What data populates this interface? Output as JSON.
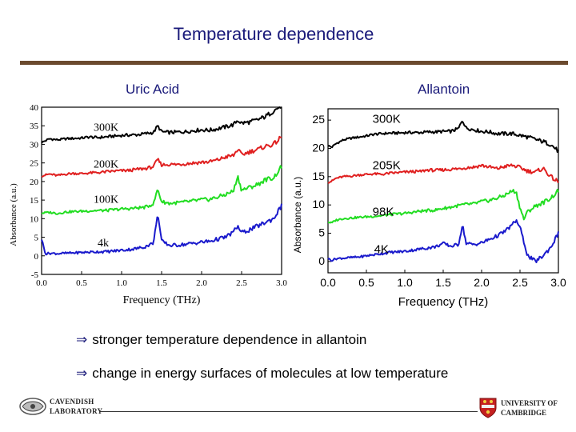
{
  "title": "Temperature dependence",
  "bullets": [
    "stronger temperature dependence in allantoin",
    "change in energy surfaces of molecules at low temperature"
  ],
  "logos": {
    "left": [
      "CAVENDISH",
      "LABORATORY"
    ],
    "right": [
      "UNIVERSITY OF",
      "CAMBRIDGE"
    ]
  },
  "colors": {
    "title": "#1a1a7a",
    "rule": "#6b4a2e",
    "s300": "#000000",
    "s200": "#e02020",
    "s100": "#22dd22",
    "s4": "#1a1acc"
  },
  "chart_data": [
    {
      "type": "line",
      "title": "Uric Acid",
      "xlabel": "Frequency (THz)",
      "ylabel": "Absorbance (a.u.)",
      "xlim": [
        0.0,
        3.0
      ],
      "ylim": [
        -5,
        40
      ],
      "xticks": [
        "0.0",
        "0.5",
        "1.0",
        "1.5",
        "2.0",
        "2.5",
        "3.0"
      ],
      "yticks": [
        "-5",
        "0",
        "5",
        "10",
        "15",
        "20",
        "25",
        "30",
        "35",
        "40"
      ],
      "series": [
        {
          "name": "300K",
          "color": "#000000",
          "label_at": [
            0.65,
            33.7
          ],
          "x": [
            0.0,
            0.1,
            0.2,
            0.3,
            0.4,
            0.5,
            0.6,
            0.7,
            0.8,
            0.9,
            1.0,
            1.1,
            1.2,
            1.3,
            1.4,
            1.45,
            1.5,
            1.6,
            1.7,
            1.8,
            1.9,
            2.0,
            2.1,
            2.2,
            2.3,
            2.4,
            2.45,
            2.5,
            2.6,
            2.7,
            2.8,
            2.9,
            3.0
          ],
          "y": [
            30.5,
            31.5,
            31.2,
            31.5,
            31.6,
            31.7,
            32.0,
            31.8,
            32.0,
            32.2,
            32.4,
            32.5,
            32.6,
            32.9,
            33.2,
            35.0,
            33.4,
            33.2,
            33.3,
            33.4,
            33.7,
            33.9,
            33.8,
            34.2,
            34.7,
            35.3,
            36.5,
            35.7,
            36.0,
            36.6,
            37.5,
            39.0,
            40.5
          ]
        },
        {
          "name": "200K",
          "color": "#e02020",
          "label_at": [
            0.65,
            23.7
          ],
          "x": [
            0.0,
            0.1,
            0.2,
            0.3,
            0.4,
            0.5,
            0.6,
            0.7,
            0.8,
            0.9,
            1.0,
            1.1,
            1.2,
            1.3,
            1.4,
            1.45,
            1.5,
            1.6,
            1.7,
            1.8,
            1.9,
            2.0,
            2.1,
            2.2,
            2.3,
            2.4,
            2.45,
            2.5,
            2.6,
            2.7,
            2.8,
            2.9,
            3.0
          ],
          "y": [
            21.5,
            22.0,
            21.6,
            22.0,
            22.2,
            22.1,
            22.3,
            22.4,
            22.6,
            22.8,
            22.9,
            23.0,
            23.3,
            23.5,
            24.0,
            26.0,
            24.5,
            24.6,
            24.6,
            24.8,
            25.0,
            25.2,
            25.3,
            25.8,
            26.6,
            27.0,
            28.7,
            27.2,
            28.0,
            28.6,
            29.5,
            30.0,
            32.0
          ]
        },
        {
          "name": "100K",
          "color": "#22dd22",
          "label_at": [
            0.65,
            14.3
          ],
          "x": [
            0.0,
            0.1,
            0.2,
            0.3,
            0.4,
            0.5,
            0.6,
            0.7,
            0.8,
            0.9,
            1.0,
            1.1,
            1.2,
            1.3,
            1.4,
            1.45,
            1.5,
            1.6,
            1.7,
            1.8,
            1.9,
            2.0,
            2.1,
            2.2,
            2.3,
            2.4,
            2.45,
            2.5,
            2.6,
            2.7,
            2.8,
            2.9,
            3.0
          ],
          "y": [
            11.5,
            11.7,
            11.4,
            11.8,
            11.9,
            12.0,
            12.1,
            12.2,
            12.2,
            12.4,
            12.6,
            12.7,
            12.9,
            13.1,
            14.0,
            18.0,
            14.6,
            14.1,
            14.3,
            14.5,
            14.8,
            15.1,
            15.2,
            15.8,
            16.5,
            17.5,
            21.5,
            17.7,
            18.4,
            19.2,
            20.5,
            21.0,
            24.0
          ]
        },
        {
          "name": "4k",
          "color": "#1a1acc",
          "label_at": [
            0.7,
            2.5
          ],
          "x": [
            0.0,
            0.05,
            0.1,
            0.2,
            0.3,
            0.4,
            0.5,
            0.6,
            0.7,
            0.8,
            0.9,
            1.0,
            1.1,
            1.2,
            1.3,
            1.4,
            1.45,
            1.5,
            1.6,
            1.7,
            1.8,
            1.9,
            2.0,
            2.1,
            2.2,
            2.3,
            2.4,
            2.45,
            2.5,
            2.6,
            2.7,
            2.8,
            2.9,
            3.0
          ],
          "y": [
            4.5,
            0.5,
            0.7,
            0.6,
            0.7,
            0.8,
            0.9,
            1.0,
            1.1,
            1.1,
            1.3,
            1.5,
            1.7,
            2.0,
            2.5,
            3.5,
            11.5,
            4.0,
            2.8,
            2.9,
            3.1,
            3.4,
            3.7,
            3.9,
            4.5,
            5.0,
            6.5,
            8.0,
            6.2,
            7.0,
            8.0,
            9.0,
            10.0,
            13.5
          ]
        }
      ]
    },
    {
      "type": "line",
      "title": "Allantoin",
      "xlabel": "Frequency (THz)",
      "ylabel": "Absorbance (a.u.)",
      "xlim": [
        0.0,
        3.0
      ],
      "ylim": [
        -2,
        27
      ],
      "xticks": [
        "0.0",
        "0.5",
        "1.0",
        "1.5",
        "2.0",
        "2.5",
        "3.0"
      ],
      "yticks": [
        "0",
        "5",
        "10",
        "15",
        "20",
        "25"
      ],
      "series": [
        {
          "name": "300K",
          "color": "#000000",
          "label_at": [
            0.58,
            24.5
          ],
          "x": [
            0.0,
            0.05,
            0.1,
            0.2,
            0.3,
            0.4,
            0.5,
            0.6,
            0.7,
            0.8,
            0.9,
            1.0,
            1.1,
            1.2,
            1.3,
            1.4,
            1.5,
            1.6,
            1.7,
            1.75,
            1.8,
            1.9,
            2.0,
            2.1,
            2.2,
            2.3,
            2.4,
            2.5,
            2.6,
            2.7,
            2.8,
            2.9,
            3.0
          ],
          "y": [
            20.5,
            20.2,
            20.8,
            21.5,
            21.8,
            22.0,
            22.2,
            22.5,
            22.6,
            22.7,
            22.7,
            22.8,
            22.8,
            22.8,
            22.9,
            22.9,
            23.0,
            23.0,
            23.5,
            25.0,
            23.6,
            23.3,
            23.0,
            22.9,
            22.6,
            22.6,
            22.6,
            22.3,
            22.0,
            21.6,
            21.2,
            20.7,
            19.5
          ]
        },
        {
          "name": "205K",
          "color": "#e02020",
          "label_at": [
            0.58,
            16.3
          ],
          "x": [
            0.0,
            0.05,
            0.1,
            0.2,
            0.3,
            0.4,
            0.5,
            0.6,
            0.7,
            0.8,
            0.9,
            1.0,
            1.1,
            1.2,
            1.3,
            1.4,
            1.5,
            1.6,
            1.7,
            1.8,
            1.9,
            2.0,
            2.1,
            2.2,
            2.3,
            2.4,
            2.5,
            2.6,
            2.7,
            2.8,
            2.9,
            3.0
          ],
          "y": [
            14.0,
            14.2,
            14.7,
            15.0,
            15.1,
            15.3,
            15.4,
            15.5,
            15.4,
            15.6,
            15.7,
            15.8,
            15.9,
            15.9,
            16.2,
            16.1,
            16.2,
            16.3,
            16.4,
            16.6,
            16.7,
            17.0,
            16.7,
            16.4,
            16.8,
            17.0,
            16.6,
            16.0,
            15.8,
            16.5,
            15.0,
            14.0
          ]
        },
        {
          "name": "98K",
          "color": "#22dd22",
          "label_at": [
            0.58,
            8.1
          ],
          "x": [
            0.0,
            0.05,
            0.1,
            0.2,
            0.3,
            0.4,
            0.5,
            0.6,
            0.7,
            0.8,
            0.9,
            1.0,
            1.1,
            1.2,
            1.3,
            1.4,
            1.5,
            1.6,
            1.7,
            1.8,
            1.9,
            2.0,
            2.1,
            2.2,
            2.3,
            2.4,
            2.45,
            2.5,
            2.55,
            2.6,
            2.7,
            2.8,
            2.9,
            3.0
          ],
          "y": [
            7.0,
            6.8,
            7.3,
            7.6,
            7.7,
            7.8,
            7.9,
            8.0,
            8.1,
            8.3,
            8.4,
            8.5,
            8.7,
            8.9,
            9.0,
            9.1,
            9.4,
            9.6,
            9.9,
            10.1,
            10.2,
            10.6,
            10.8,
            11.2,
            11.7,
            12.5,
            12.3,
            9.5,
            7.5,
            8.8,
            9.8,
            10.4,
            11.2,
            12.5
          ]
        },
        {
          "name": "4K",
          "color": "#1a1acc",
          "label_at": [
            0.6,
            1.5
          ],
          "x": [
            0.0,
            0.05,
            0.1,
            0.2,
            0.3,
            0.4,
            0.5,
            0.6,
            0.7,
            0.8,
            0.9,
            1.0,
            1.1,
            1.2,
            1.3,
            1.4,
            1.5,
            1.6,
            1.7,
            1.75,
            1.8,
            1.9,
            2.0,
            2.1,
            2.2,
            2.3,
            2.4,
            2.45,
            2.5,
            2.55,
            2.6,
            2.7,
            2.8,
            2.9,
            3.0
          ],
          "y": [
            0.5,
            0.2,
            0.5,
            0.6,
            0.7,
            0.8,
            1.0,
            1.2,
            1.4,
            1.6,
            1.7,
            1.8,
            2.0,
            2.2,
            2.4,
            2.6,
            3.2,
            2.7,
            3.0,
            6.5,
            3.2,
            3.0,
            3.3,
            3.9,
            4.5,
            5.3,
            6.5,
            7.3,
            6.0,
            3.5,
            1.0,
            0.0,
            1.0,
            2.5,
            5.0
          ]
        }
      ]
    }
  ]
}
